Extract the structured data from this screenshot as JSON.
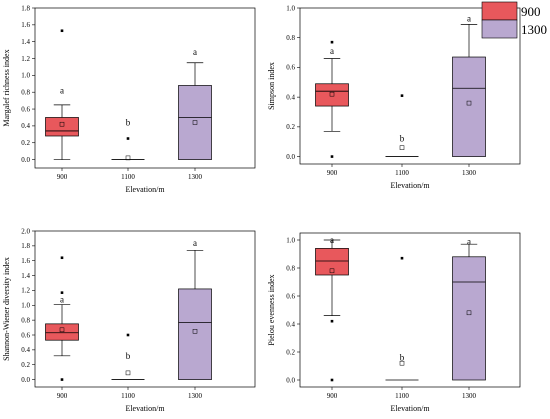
{
  "legend": {
    "items": [
      {
        "label": "900",
        "color": "#e8585c"
      },
      {
        "label": "1300",
        "color": "#b9a8d0"
      }
    ]
  },
  "colors": {
    "low": "#e8585c",
    "mid": "#e8585c",
    "high": "#b9a8d0",
    "stroke": "#000000"
  },
  "chart_data": [
    {
      "type": "box",
      "id": "margalef",
      "xlabel": "Elevation/m",
      "ylabel": "Margalef richness index",
      "ylim": [
        -0.1,
        1.8
      ],
      "yticks": [
        "0.0",
        "0.2",
        "0.4",
        "0.6",
        "0.8",
        "1.0",
        "1.2",
        "1.4",
        "1.6",
        "1.8"
      ],
      "categories": [
        "900",
        "1100",
        "1300"
      ],
      "boxes": [
        {
          "category": "900",
          "min": 0.0,
          "q1": 0.28,
          "median": 0.34,
          "q3": 0.5,
          "max": 0.65,
          "mean": 0.42,
          "outliers": [
            1.53
          ],
          "letter": "a",
          "letter_y": 0.82
        },
        {
          "category": "1100",
          "min": 0.0,
          "q1": 0.0,
          "median": 0.0,
          "q3": 0.0,
          "max": 0.0,
          "mean": 0.02,
          "outliers": [
            0.25
          ],
          "letter": "b",
          "letter_y": 0.44
        },
        {
          "category": "1300",
          "min": 0.0,
          "q1": 0.0,
          "median": 0.5,
          "q3": 0.88,
          "max": 1.15,
          "mean": 0.44,
          "outliers": [],
          "letter": "a",
          "letter_y": 1.28
        }
      ]
    },
    {
      "type": "box",
      "id": "simpson",
      "xlabel": "Elevation/m",
      "ylabel": "Simpson index",
      "ylim": [
        -0.05,
        1.0
      ],
      "yticks": [
        "0.0",
        "0.2",
        "0.4",
        "0.6",
        "0.8",
        "1.0"
      ],
      "categories": [
        "900",
        "1100",
        "1300"
      ],
      "boxes": [
        {
          "category": "900",
          "min": 0.17,
          "q1": 0.34,
          "median": 0.44,
          "q3": 0.49,
          "max": 0.66,
          "mean": 0.42,
          "outliers": [
            0.77,
            0.0
          ],
          "letter": "a",
          "letter_y": 0.71
        },
        {
          "category": "1100",
          "min": 0.0,
          "q1": 0.0,
          "median": 0.0,
          "q3": 0.0,
          "max": 0.0,
          "mean": 0.06,
          "outliers": [
            0.41
          ],
          "letter": "b",
          "letter_y": 0.12
        },
        {
          "category": "1300",
          "min": 0.0,
          "q1": 0.0,
          "median": 0.46,
          "q3": 0.67,
          "max": 0.89,
          "mean": 0.36,
          "outliers": [],
          "letter": "a",
          "letter_y": 0.93
        }
      ]
    },
    {
      "type": "box",
      "id": "shannon",
      "xlabel": "Elevation/m",
      "ylabel": "Shannon-Wiener diversity index",
      "ylim": [
        -0.1,
        2.0
      ],
      "yticks": [
        "0.0",
        "0.2",
        "0.4",
        "0.6",
        "0.8",
        "1.0",
        "1.2",
        "1.4",
        "1.6",
        "1.8",
        "2.0"
      ],
      "categories": [
        "900",
        "1100",
        "1300"
      ],
      "boxes": [
        {
          "category": "900",
          "min": 0.32,
          "q1": 0.53,
          "median": 0.63,
          "q3": 0.75,
          "max": 1.01,
          "mean": 0.67,
          "outliers": [
            1.64,
            1.17,
            0.0
          ],
          "letter": "a",
          "letter_y": 1.08
        },
        {
          "category": "1100",
          "min": 0.0,
          "q1": 0.0,
          "median": 0.0,
          "q3": 0.0,
          "max": 0.0,
          "mean": 0.09,
          "outliers": [
            0.6
          ],
          "letter": "b",
          "letter_y": 0.32
        },
        {
          "category": "1300",
          "min": 0.0,
          "q1": 0.0,
          "median": 0.77,
          "q3": 1.22,
          "max": 1.74,
          "mean": 0.65,
          "outliers": [],
          "letter": "a",
          "letter_y": 1.84
        }
      ]
    },
    {
      "type": "box",
      "id": "pielou",
      "xlabel": "Elevation/m",
      "ylabel": "Pielou evenness index",
      "ylim": [
        -0.05,
        1.05
      ],
      "yticks": [
        "0.0",
        "0.2",
        "0.4",
        "0.6",
        "0.8",
        "1.0"
      ],
      "categories": [
        "900",
        "1100",
        "1300"
      ],
      "boxes": [
        {
          "category": "900",
          "min": 0.46,
          "q1": 0.75,
          "median": 0.85,
          "q3": 0.94,
          "max": 1.0,
          "mean": 0.78,
          "outliers": [
            0.42,
            0.0
          ],
          "letter": "a",
          "letter_y": 1.0
        },
        {
          "category": "1100",
          "min": 0.0,
          "q1": 0.0,
          "median": 0.0,
          "q3": 0.0,
          "max": 0.0,
          "mean": 0.12,
          "outliers": [
            0.87
          ],
          "letter": "b",
          "letter_y": 0.16
        },
        {
          "category": "1300",
          "min": 0.0,
          "q1": 0.0,
          "median": 0.7,
          "q3": 0.88,
          "max": 0.97,
          "mean": 0.48,
          "outliers": [],
          "letter": "a",
          "letter_y": 0.99
        }
      ]
    }
  ]
}
